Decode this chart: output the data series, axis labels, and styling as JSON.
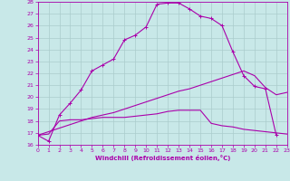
{
  "xlabel": "Windchill (Refroidissement éolien,°C)",
  "bg_color": "#c8e8e8",
  "line_color": "#aa00aa",
  "grid_color": "#aacccc",
  "ylim": [
    16,
    28
  ],
  "xlim": [
    0,
    23
  ],
  "yticks": [
    16,
    17,
    18,
    19,
    20,
    21,
    22,
    23,
    24,
    25,
    26,
    27,
    28
  ],
  "xticks": [
    0,
    1,
    2,
    3,
    4,
    5,
    6,
    7,
    8,
    9,
    10,
    11,
    12,
    13,
    14,
    15,
    16,
    17,
    18,
    19,
    20,
    21,
    22,
    23
  ],
  "line1_x": [
    0,
    1,
    2,
    3,
    4,
    5,
    6,
    7,
    8,
    9,
    10,
    11,
    12,
    13,
    14,
    15,
    16,
    17,
    18,
    19,
    20,
    21,
    22
  ],
  "line1_y": [
    16.8,
    16.3,
    18.5,
    19.5,
    20.6,
    22.2,
    22.7,
    23.2,
    24.8,
    25.2,
    25.9,
    27.8,
    27.9,
    27.9,
    27.4,
    26.8,
    26.6,
    26.0,
    23.8,
    21.8,
    20.9,
    20.7,
    16.8
  ],
  "line2_x": [
    0,
    1,
    2,
    3,
    4,
    5,
    6,
    7,
    8,
    9,
    10,
    11,
    12,
    13,
    14,
    15,
    16,
    17,
    18,
    19,
    20,
    21,
    22,
    23
  ],
  "line2_y": [
    16.8,
    16.9,
    18.0,
    18.1,
    18.1,
    18.2,
    18.3,
    18.3,
    18.3,
    18.4,
    18.5,
    18.6,
    18.8,
    18.9,
    18.9,
    18.9,
    17.8,
    17.6,
    17.5,
    17.3,
    17.2,
    17.1,
    17.0,
    16.9
  ],
  "line3_x": [
    0,
    1,
    2,
    3,
    4,
    5,
    6,
    7,
    8,
    9,
    10,
    11,
    12,
    13,
    14,
    15,
    16,
    17,
    18,
    19,
    20,
    21,
    22,
    23
  ],
  "line3_y": [
    16.8,
    17.1,
    17.4,
    17.7,
    18.0,
    18.3,
    18.5,
    18.7,
    19.0,
    19.3,
    19.6,
    19.9,
    20.2,
    20.5,
    20.7,
    21.0,
    21.3,
    21.6,
    21.9,
    22.2,
    21.8,
    20.8,
    20.2,
    20.4
  ]
}
